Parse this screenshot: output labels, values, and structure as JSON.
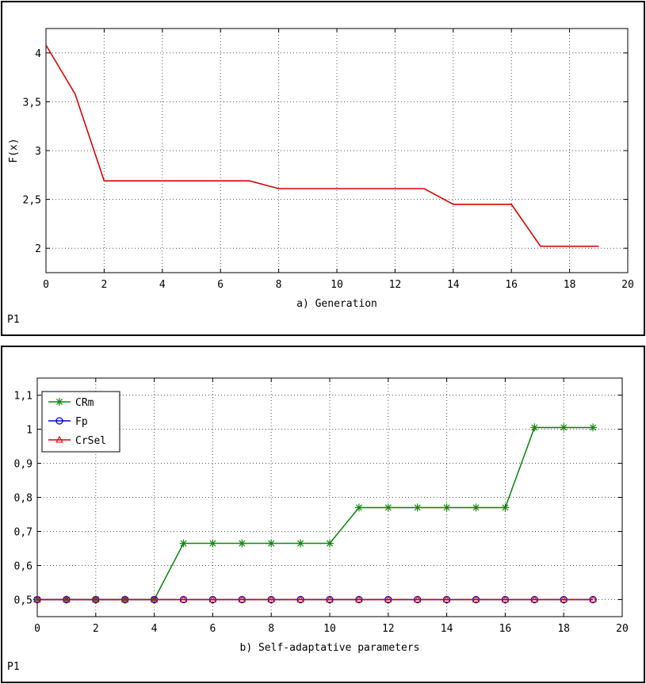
{
  "chart_data": [
    {
      "type": "line",
      "title": "",
      "xlabel": "a) Generation",
      "ylabel": "F(x)",
      "panel_tag": "P1",
      "xlim": [
        0,
        20
      ],
      "ylim": [
        1.75,
        4.25
      ],
      "xticks": [
        0,
        2,
        4,
        6,
        8,
        10,
        12,
        14,
        16,
        18,
        20
      ],
      "yticks": [
        2,
        2.5,
        3,
        3.5,
        4
      ],
      "ytick_labels": [
        "2",
        "2,5",
        "3",
        "3,5",
        "4"
      ],
      "grid": true,
      "series": [
        {
          "color": "#dd0000",
          "marker": "none",
          "x": [
            0,
            1,
            2,
            3,
            4,
            5,
            6,
            7,
            8,
            9,
            10,
            11,
            12,
            13,
            14,
            15,
            16,
            17,
            18,
            19
          ],
          "values": [
            4.08,
            3.58,
            2.69,
            2.69,
            2.69,
            2.69,
            2.69,
            2.69,
            2.61,
            2.61,
            2.61,
            2.61,
            2.61,
            2.61,
            2.45,
            2.45,
            2.45,
            2.02,
            2.02,
            2.02
          ]
        }
      ]
    },
    {
      "type": "line",
      "title": "",
      "xlabel": "b) Self-adaptative parameters",
      "ylabel": "",
      "panel_tag": "P1",
      "xlim": [
        0,
        20
      ],
      "ylim": [
        0.45,
        1.15
      ],
      "xticks": [
        0,
        2,
        4,
        6,
        8,
        10,
        12,
        14,
        16,
        18,
        20
      ],
      "yticks": [
        0.5,
        0.6,
        0.7,
        0.8,
        0.9,
        1,
        1.1
      ],
      "ytick_labels": [
        "0,5",
        "0,6",
        "0,7",
        "0,8",
        "0,9",
        "1",
        "1,1"
      ],
      "grid": true,
      "legend_position": "top-left",
      "series": [
        {
          "name": "CRm",
          "color": "#118811",
          "marker": "star",
          "x": [
            0,
            1,
            2,
            3,
            4,
            5,
            6,
            7,
            8,
            9,
            10,
            11,
            12,
            13,
            14,
            15,
            16,
            17,
            18,
            19
          ],
          "values": [
            0.5,
            0.5,
            0.5,
            0.5,
            0.5,
            0.665,
            0.665,
            0.665,
            0.665,
            0.665,
            0.665,
            0.77,
            0.77,
            0.77,
            0.77,
            0.77,
            0.77,
            1.005,
            1.005,
            1.005
          ]
        },
        {
          "name": "Fp",
          "color": "#0000dd",
          "marker": "circle",
          "x": [
            0,
            1,
            2,
            3,
            4,
            5,
            6,
            7,
            8,
            9,
            10,
            11,
            12,
            13,
            14,
            15,
            16,
            17,
            18,
            19
          ],
          "values": [
            0.5,
            0.5,
            0.5,
            0.5,
            0.5,
            0.5,
            0.5,
            0.5,
            0.5,
            0.5,
            0.5,
            0.5,
            0.5,
            0.5,
            0.5,
            0.5,
            0.5,
            0.5,
            0.5,
            0.5
          ]
        },
        {
          "name": "CrSel",
          "color": "#dd0000",
          "marker": "triangle",
          "x": [
            0,
            1,
            2,
            3,
            4,
            5,
            6,
            7,
            8,
            9,
            10,
            11,
            12,
            13,
            14,
            15,
            16,
            17,
            18,
            19
          ],
          "values": [
            0.5,
            0.5,
            0.5,
            0.5,
            0.5,
            0.5,
            0.5,
            0.5,
            0.5,
            0.5,
            0.5,
            0.5,
            0.5,
            0.5,
            0.5,
            0.5,
            0.5,
            0.5,
            0.5,
            0.5
          ]
        }
      ]
    }
  ]
}
